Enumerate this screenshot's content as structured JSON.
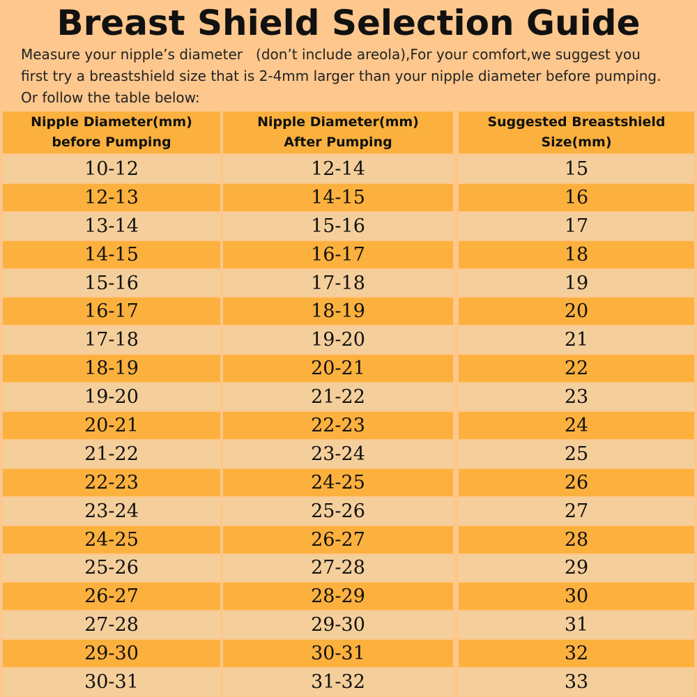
{
  "header": {
    "title": "Breast Shield Selection Guide",
    "description": [
      "Measure your nipple’s diameter   (don’t include areola),For your comfort,we suggest you",
      "first try a breastshield size that is 2-4mm larger than your nipple diameter before pumping.",
      "Or follow the table below:"
    ]
  },
  "table": {
    "headers": [
      [
        "Nipple Diameter(mm)",
        "before Pumping"
      ],
      [
        "Nipple Diameter(mm)",
        "After Pumping"
      ],
      [
        "Suggested Breastshield",
        "Size(mm)"
      ]
    ],
    "rows": [
      [
        "10-12",
        "12-14",
        15
      ],
      [
        "12-13",
        "14-15",
        16
      ],
      [
        "13-14",
        "15-16",
        17
      ],
      [
        "14-15",
        "16-17",
        18
      ],
      [
        "15-16",
        "17-18",
        19
      ],
      [
        "16-17",
        "18-19",
        20
      ],
      [
        "17-18",
        "19-20",
        21
      ],
      [
        "18-19",
        "20-21",
        22
      ],
      [
        "19-20",
        "21-22",
        23
      ],
      [
        "20-21",
        "22-23",
        24
      ],
      [
        "21-22",
        "23-24",
        25
      ],
      [
        "22-23",
        "24-25",
        26
      ],
      [
        "23-24",
        "25-26",
        27
      ],
      [
        "24-25",
        "26-27",
        28
      ],
      [
        "25-26",
        "27-28",
        29
      ],
      [
        "26-27",
        "28-29",
        30
      ],
      [
        "27-28",
        "29-30",
        31
      ],
      [
        "29-30",
        "30-31",
        32
      ],
      [
        "30-31",
        "31-32",
        33
      ]
    ]
  }
}
